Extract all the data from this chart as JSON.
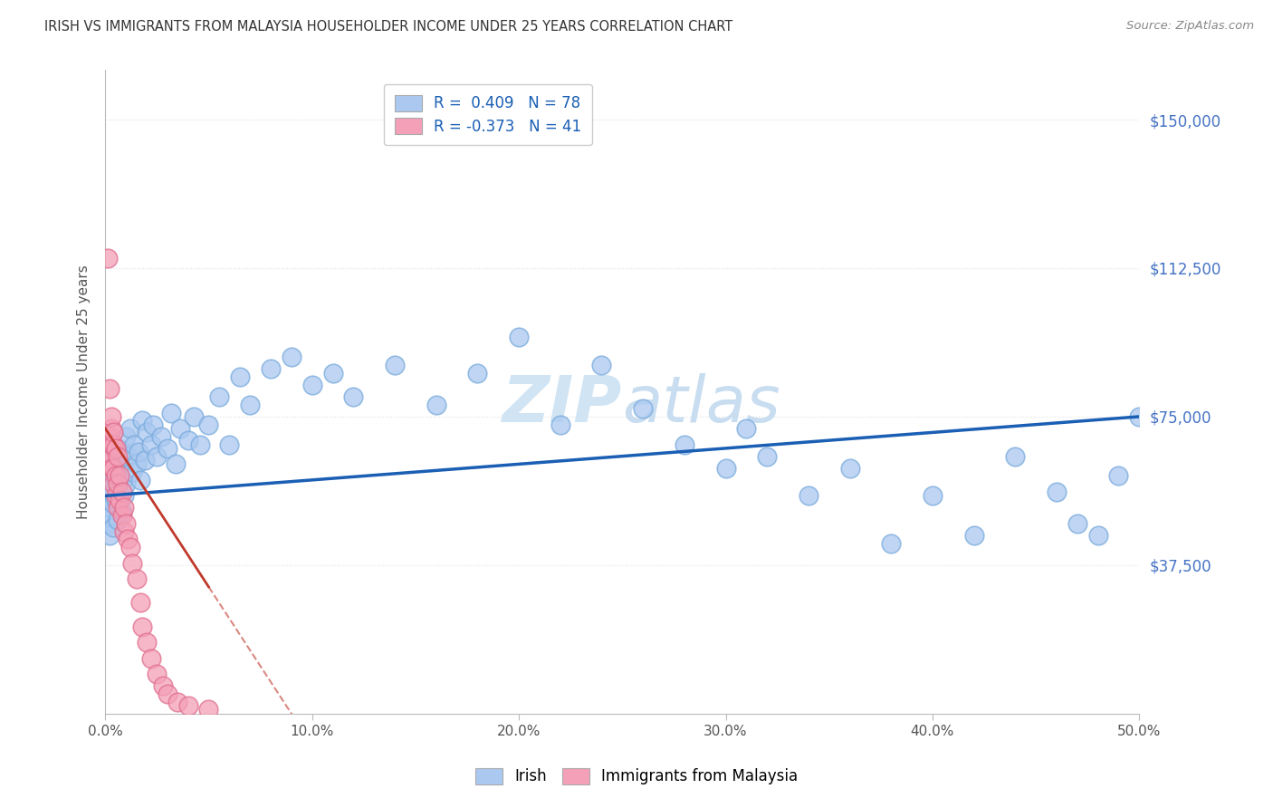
{
  "title": "IRISH VS IMMIGRANTS FROM MALAYSIA HOUSEHOLDER INCOME UNDER 25 YEARS CORRELATION CHART",
  "source": "Source: ZipAtlas.com",
  "ylabel": "Householder Income Under 25 years",
  "x_min": 0.0,
  "x_max": 0.5,
  "y_min": 0,
  "y_max": 162500,
  "y_ticks": [
    37500,
    75000,
    112500,
    150000
  ],
  "x_ticks": [
    0.0,
    0.1,
    0.2,
    0.3,
    0.4,
    0.5
  ],
  "x_tick_labels": [
    "0.0%",
    "10.0%",
    "20.0%",
    "30.0%",
    "40.0%",
    "50.0%"
  ],
  "irish_R": 0.409,
  "irish_N": 78,
  "malaysia_R": -0.373,
  "malaysia_N": 41,
  "irish_color": "#aac8f0",
  "irish_edge_color": "#7aabdd",
  "irish_line_color": "#1a5fb4",
  "malaysia_color": "#f4a0b8",
  "malaysia_edge_color": "#e07090",
  "malaysia_line_color": "#c0392b",
  "watermark_color": "#d0e4f4",
  "background_color": "#ffffff",
  "grid_color": "#e0e0e0",
  "irish_line_y0": 55000,
  "irish_line_y1": 75000,
  "malaysia_line_x0": 0.0,
  "malaysia_line_y0": 72000,
  "malaysia_line_slope": -800000,
  "irish_scatter_x": [
    0.001,
    0.001,
    0.002,
    0.002,
    0.002,
    0.003,
    0.003,
    0.003,
    0.004,
    0.004,
    0.004,
    0.005,
    0.005,
    0.005,
    0.006,
    0.006,
    0.006,
    0.007,
    0.007,
    0.008,
    0.008,
    0.009,
    0.009,
    0.01,
    0.01,
    0.011,
    0.012,
    0.013,
    0.014,
    0.015,
    0.016,
    0.017,
    0.018,
    0.019,
    0.02,
    0.022,
    0.023,
    0.025,
    0.027,
    0.03,
    0.032,
    0.034,
    0.036,
    0.04,
    0.043,
    0.046,
    0.05,
    0.055,
    0.06,
    0.065,
    0.07,
    0.08,
    0.09,
    0.1,
    0.11,
    0.12,
    0.14,
    0.16,
    0.18,
    0.2,
    0.22,
    0.24,
    0.26,
    0.28,
    0.3,
    0.31,
    0.32,
    0.34,
    0.36,
    0.38,
    0.4,
    0.42,
    0.44,
    0.46,
    0.47,
    0.48,
    0.49,
    0.5
  ],
  "irish_scatter_y": [
    48000,
    55000,
    52000,
    60000,
    45000,
    57000,
    50000,
    65000,
    53000,
    62000,
    47000,
    58000,
    64000,
    54000,
    61000,
    49000,
    67000,
    56000,
    63000,
    59000,
    51000,
    66000,
    55000,
    70000,
    58000,
    65000,
    72000,
    61000,
    68000,
    63000,
    66000,
    59000,
    74000,
    64000,
    71000,
    68000,
    73000,
    65000,
    70000,
    67000,
    76000,
    63000,
    72000,
    69000,
    75000,
    68000,
    73000,
    80000,
    68000,
    85000,
    78000,
    87000,
    90000,
    83000,
    86000,
    80000,
    88000,
    78000,
    86000,
    95000,
    73000,
    88000,
    77000,
    68000,
    62000,
    72000,
    65000,
    55000,
    62000,
    43000,
    55000,
    45000,
    65000,
    56000,
    48000,
    45000,
    60000,
    75000
  ],
  "malaysia_scatter_x": [
    0.001,
    0.001,
    0.001,
    0.002,
    0.002,
    0.002,
    0.003,
    0.003,
    0.003,
    0.003,
    0.004,
    0.004,
    0.004,
    0.004,
    0.005,
    0.005,
    0.005,
    0.006,
    0.006,
    0.006,
    0.007,
    0.007,
    0.008,
    0.008,
    0.009,
    0.009,
    0.01,
    0.011,
    0.012,
    0.013,
    0.015,
    0.017,
    0.018,
    0.02,
    0.022,
    0.025,
    0.028,
    0.03,
    0.035,
    0.04,
    0.05
  ],
  "malaysia_scatter_y": [
    115000,
    70000,
    63000,
    82000,
    70000,
    65000,
    72000,
    68000,
    62000,
    75000,
    68000,
    62000,
    71000,
    58000,
    67000,
    60000,
    55000,
    65000,
    58000,
    52000,
    60000,
    54000,
    56000,
    50000,
    52000,
    46000,
    48000,
    44000,
    42000,
    38000,
    34000,
    28000,
    22000,
    18000,
    14000,
    10000,
    7000,
    5000,
    3000,
    2000,
    1000
  ]
}
